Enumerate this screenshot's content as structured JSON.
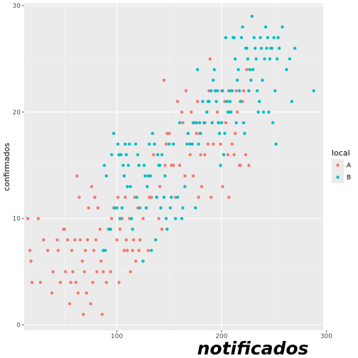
{
  "chart_data": {
    "type": "scatter",
    "title": "",
    "xlabel": "notificados",
    "ylabel": "confirmados",
    "xlim": [
      11.5,
      297
    ],
    "ylim": [
      -0.5,
      30.2
    ],
    "xticks": [
      100,
      200,
      300
    ],
    "yticks": [
      0,
      10,
      20,
      30
    ],
    "xtick_labels": [
      "100",
      "200",
      "300"
    ],
    "ytick_labels": [
      "0",
      "10",
      "20",
      "30"
    ],
    "grid": true,
    "legend": {
      "title": "local",
      "position": "right"
    },
    "series": [
      {
        "name": "A",
        "color": "#F8766D",
        "points": [
          [
            15,
            10
          ],
          [
            17,
            7
          ],
          [
            18,
            6
          ],
          [
            19,
            4
          ],
          [
            25,
            10
          ],
          [
            27,
            4
          ],
          [
            30,
            8
          ],
          [
            34,
            7
          ],
          [
            38,
            3
          ],
          [
            39,
            5
          ],
          [
            43,
            8
          ],
          [
            44,
            7
          ],
          [
            46,
            4
          ],
          [
            49,
            9
          ],
          [
            50,
            9
          ],
          [
            51,
            5
          ],
          [
            53,
            8
          ],
          [
            55,
            2
          ],
          [
            56,
            4
          ],
          [
            57,
            7
          ],
          [
            58,
            5
          ],
          [
            60,
            8
          ],
          [
            61,
            4
          ],
          [
            62,
            14
          ],
          [
            63,
            3
          ],
          [
            64,
            12
          ],
          [
            65,
            8
          ],
          [
            67,
            6
          ],
          [
            68,
            1
          ],
          [
            69,
            5
          ],
          [
            70,
            7
          ],
          [
            71,
            3
          ],
          [
            72,
            8
          ],
          [
            73,
            11
          ],
          [
            75,
            2
          ],
          [
            76,
            13
          ],
          [
            77,
            4
          ],
          [
            78,
            7
          ],
          [
            79,
            12
          ],
          [
            80,
            8
          ],
          [
            81,
            5
          ],
          [
            82,
            11
          ],
          [
            84,
            9
          ],
          [
            85,
            6
          ],
          [
            86,
            1
          ],
          [
            87,
            5
          ],
          [
            90,
            4
          ],
          [
            92,
            9
          ],
          [
            94,
            5
          ],
          [
            95,
            10
          ],
          [
            97,
            11
          ],
          [
            100,
            8
          ],
          [
            101,
            12
          ],
          [
            102,
            4
          ],
          [
            103,
            9
          ],
          [
            105,
            10
          ],
          [
            107,
            7
          ],
          [
            108,
            12
          ],
          [
            109,
            8
          ],
          [
            110,
            7
          ],
          [
            112,
            10
          ],
          [
            113,
            5
          ],
          [
            115,
            7
          ],
          [
            116,
            8
          ],
          [
            117,
            12
          ],
          [
            118,
            6
          ],
          [
            120,
            11
          ],
          [
            121,
            7
          ],
          [
            122,
            8
          ],
          [
            125,
            10
          ],
          [
            128,
            11
          ],
          [
            130,
            7
          ],
          [
            131,
            12
          ],
          [
            133,
            12
          ],
          [
            135,
            16
          ],
          [
            138,
            12
          ],
          [
            140,
            10
          ],
          [
            141,
            13
          ],
          [
            143,
            9
          ],
          [
            145,
            23
          ],
          [
            146,
            15
          ],
          [
            147,
            17
          ],
          [
            148,
            18
          ],
          [
            150,
            18
          ],
          [
            152,
            15
          ],
          [
            154,
            15
          ],
          [
            156,
            12
          ],
          [
            158,
            21
          ],
          [
            160,
            15
          ],
          [
            162,
            20
          ],
          [
            163,
            19
          ],
          [
            165,
            14
          ],
          [
            166,
            22
          ],
          [
            168,
            18
          ],
          [
            170,
            16
          ],
          [
            171,
            20
          ],
          [
            173,
            14
          ],
          [
            174,
            19
          ],
          [
            176,
            18
          ],
          [
            177,
            21
          ],
          [
            178,
            12
          ],
          [
            179,
            18
          ],
          [
            180,
            16
          ],
          [
            181,
            13
          ],
          [
            183,
            19
          ],
          [
            184,
            16
          ],
          [
            186,
            20
          ],
          [
            187,
            17
          ],
          [
            188,
            22
          ],
          [
            189,
            25
          ],
          [
            190,
            12
          ],
          [
            191,
            19
          ],
          [
            192,
            17
          ],
          [
            194,
            22
          ],
          [
            196,
            20
          ],
          [
            197,
            19
          ],
          [
            198,
            18
          ],
          [
            199,
            17
          ],
          [
            200,
            22
          ],
          [
            201,
            13
          ],
          [
            202,
            16
          ],
          [
            203,
            21
          ],
          [
            204,
            19
          ],
          [
            206,
            16
          ],
          [
            207,
            12
          ],
          [
            208,
            20
          ],
          [
            209,
            22
          ],
          [
            210,
            17
          ],
          [
            212,
            16
          ],
          [
            213,
            18
          ],
          [
            214,
            22
          ],
          [
            215,
            20
          ],
          [
            217,
            15
          ],
          [
            218,
            15
          ],
          [
            220,
            21
          ],
          [
            221,
            22
          ],
          [
            223,
            16
          ],
          [
            224,
            24
          ],
          [
            226,
            15
          ],
          [
            227,
            24
          ]
        ]
      },
      {
        "name": "B",
        "color": "#00BFC4",
        "points": [
          [
            87,
            7
          ],
          [
            88,
            15
          ],
          [
            89,
            7
          ],
          [
            90,
            14
          ],
          [
            93,
            9
          ],
          [
            94,
            9
          ],
          [
            95,
            16
          ],
          [
            97,
            18
          ],
          [
            98,
            11
          ],
          [
            100,
            11
          ],
          [
            101,
            17
          ],
          [
            102,
            16
          ],
          [
            103,
            10
          ],
          [
            104,
            16
          ],
          [
            105,
            11
          ],
          [
            106,
            15
          ],
          [
            107,
            14
          ],
          [
            108,
            17
          ],
          [
            109,
            16
          ],
          [
            110,
            13
          ],
          [
            111,
            15
          ],
          [
            112,
            17
          ],
          [
            113,
            13
          ],
          [
            114,
            10
          ],
          [
            115,
            9
          ],
          [
            118,
            17
          ],
          [
            119,
            12
          ],
          [
            120,
            16
          ],
          [
            121,
            15
          ],
          [
            122,
            11
          ],
          [
            125,
            6
          ],
          [
            126,
            15
          ],
          [
            127,
            14
          ],
          [
            128,
            11
          ],
          [
            129,
            13
          ],
          [
            130,
            14
          ],
          [
            131,
            17
          ],
          [
            132,
            14
          ],
          [
            133,
            7
          ],
          [
            134,
            18
          ],
          [
            136,
            17
          ],
          [
            137,
            8
          ],
          [
            138,
            12
          ],
          [
            139,
            16
          ],
          [
            140,
            15
          ],
          [
            141,
            15
          ],
          [
            142,
            11
          ],
          [
            143,
            16
          ],
          [
            145,
            12
          ],
          [
            146,
            14
          ],
          [
            147,
            10
          ],
          [
            148,
            9
          ],
          [
            150,
            17
          ],
          [
            151,
            11
          ],
          [
            152,
            12
          ],
          [
            154,
            17
          ],
          [
            156,
            10
          ],
          [
            158,
            12
          ],
          [
            160,
            19
          ],
          [
            162,
            10
          ],
          [
            163,
            11
          ],
          [
            165,
            13
          ],
          [
            167,
            17
          ],
          [
            168,
            18
          ],
          [
            170,
            17
          ],
          [
            172,
            17
          ],
          [
            173,
            19
          ],
          [
            175,
            11
          ],
          [
            176,
            19
          ],
          [
            177,
            24
          ],
          [
            178,
            17
          ],
          [
            179,
            19
          ],
          [
            180,
            18
          ],
          [
            182,
            21
          ],
          [
            184,
            19
          ],
          [
            186,
            20
          ],
          [
            187,
            21
          ],
          [
            188,
            21
          ],
          [
            190,
            22
          ],
          [
            191,
            19
          ],
          [
            192,
            23
          ],
          [
            193,
            24
          ],
          [
            194,
            22
          ],
          [
            195,
            21
          ],
          [
            196,
            22
          ],
          [
            197,
            19
          ],
          [
            198,
            18
          ],
          [
            199,
            15
          ],
          [
            200,
            19
          ],
          [
            201,
            22
          ],
          [
            202,
            16
          ],
          [
            203,
            18
          ],
          [
            204,
            27
          ],
          [
            205,
            21
          ],
          [
            206,
            20
          ],
          [
            207,
            22
          ],
          [
            208,
            21
          ],
          [
            209,
            20
          ],
          [
            210,
            22
          ],
          [
            211,
            27
          ],
          [
            212,
            27
          ],
          [
            213,
            25
          ],
          [
            214,
            19
          ],
          [
            215,
            23
          ],
          [
            216,
            24
          ],
          [
            217,
            22
          ],
          [
            218,
            21
          ],
          [
            219,
            27
          ],
          [
            220,
            28
          ],
          [
            221,
            19
          ],
          [
            222,
            18
          ],
          [
            223,
            26
          ],
          [
            224,
            26
          ],
          [
            225,
            25
          ],
          [
            226,
            22
          ],
          [
            227,
            24
          ],
          [
            228,
            23
          ],
          [
            229,
            29
          ],
          [
            230,
            24
          ],
          [
            231,
            27
          ],
          [
            232,
            26
          ],
          [
            233,
            25
          ],
          [
            234,
            22
          ],
          [
            235,
            20
          ],
          [
            236,
            21
          ],
          [
            237,
            27
          ],
          [
            238,
            26
          ],
          [
            239,
            23
          ],
          [
            240,
            20
          ],
          [
            241,
            25
          ],
          [
            242,
            28
          ],
          [
            243,
            26
          ],
          [
            244,
            27
          ],
          [
            245,
            20
          ],
          [
            246,
            25
          ],
          [
            247,
            26
          ],
          [
            248,
            26
          ],
          [
            249,
            19
          ],
          [
            250,
            27
          ],
          [
            251,
            22
          ],
          [
            252,
            17
          ],
          [
            253,
            25
          ],
          [
            254,
            27
          ],
          [
            255,
            26
          ],
          [
            258,
            28
          ],
          [
            262,
            24
          ],
          [
            265,
            25
          ],
          [
            267,
            21
          ],
          [
            270,
            26
          ],
          [
            288,
            22
          ]
        ]
      }
    ]
  }
}
